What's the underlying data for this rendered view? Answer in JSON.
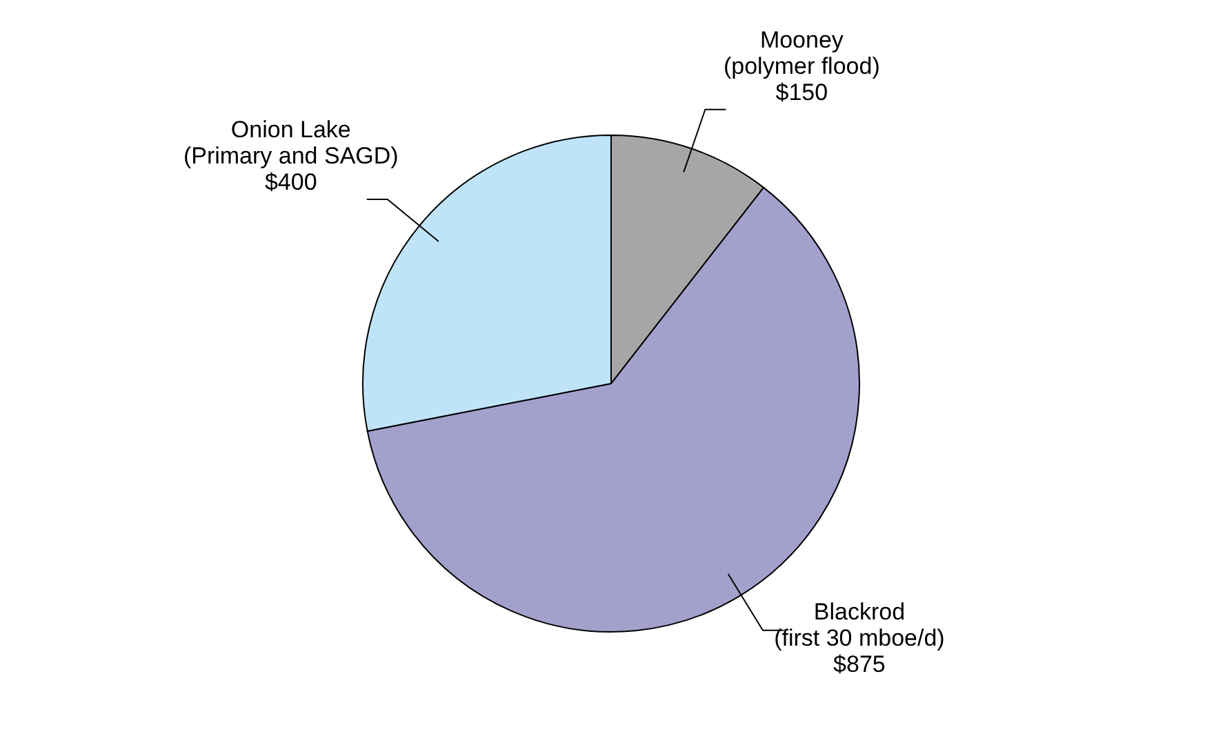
{
  "chart_data": {
    "type": "pie",
    "categories": [
      "Mooney\n(polymer flood)",
      "Blackrod\n(first 30 mboe/d)",
      "Onion Lake\n(Primary and SAGD)"
    ],
    "values": [
      150,
      875,
      400
    ],
    "value_labels": [
      "$150",
      "$875",
      "$400"
    ],
    "colors": [
      "#a6a6a6",
      "#a3a0cc",
      "#bfe4fa"
    ],
    "legend": false
  }
}
